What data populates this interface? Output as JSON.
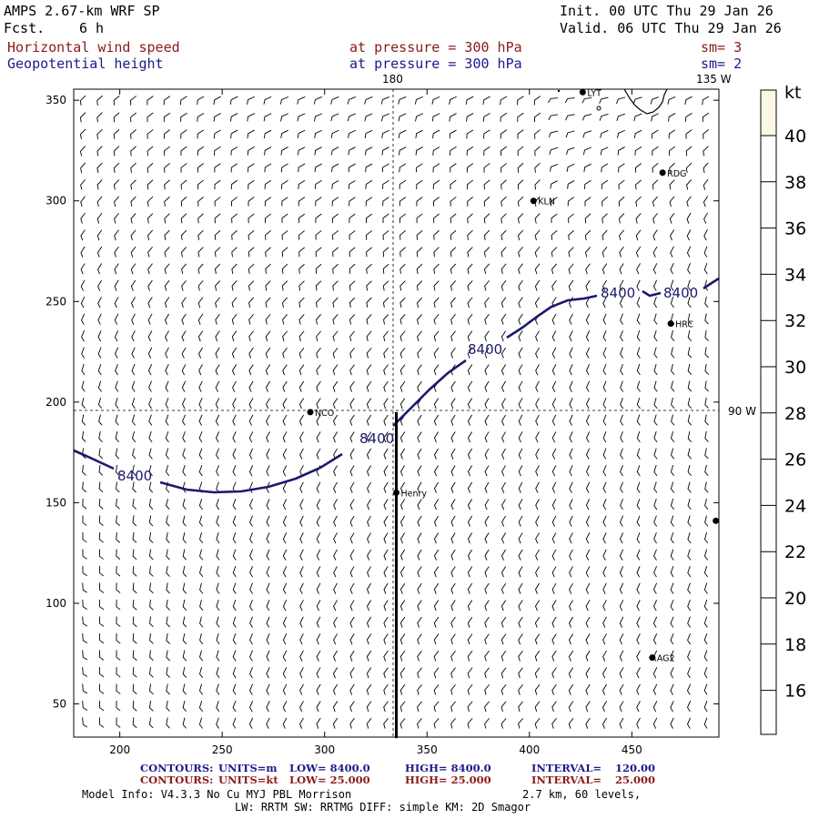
{
  "header": {
    "model": "AMPS 2.67-km WRF SP",
    "fcst_label": "Fcst.",
    "fcst_value": "6 h",
    "init": "Init. 00 UTC Thu 29 Jan 26",
    "valid": "Valid. 06 UTC Thu 29 Jan 26",
    "field1_name": "Horizontal wind speed",
    "field1_level": "at pressure =  300 hPa",
    "field1_sm": "sm= 3",
    "field2_name": "Geopotential height",
    "field2_level": "at pressure =  300 hPa",
    "field2_sm": "sm= 2"
  },
  "map": {
    "meridian_labels": {
      "m180": "180",
      "m135w": "135 W",
      "m90w": "90 W"
    },
    "x_ticks": [
      "200",
      "250",
      "300",
      "350",
      "400",
      "450"
    ],
    "y_ticks": [
      "350",
      "300",
      "250",
      "200",
      "150",
      "100",
      "50"
    ],
    "stations": [
      {
        "id": "LYT",
        "x": 426,
        "y": 354
      },
      {
        "id": "RDG",
        "x": 465,
        "y": 314
      },
      {
        "id": "KLN",
        "x": 402,
        "y": 300
      },
      {
        "id": "HRC",
        "x": 469,
        "y": 239
      },
      {
        "id": "NCO",
        "x": 293,
        "y": 195
      },
      {
        "id": "Henry",
        "x": 335,
        "y": 155
      },
      {
        "id": "AG2",
        "x": 460,
        "y": 73
      },
      {
        "id": "",
        "x": 491,
        "y": 141
      }
    ],
    "cross_section_x": 335,
    "cross_section_y": [
      33,
      195
    ],
    "contour_label": "8400"
  },
  "colorbar": {
    "unit": "kt",
    "ticks": [
      "40",
      "38",
      "36",
      "34",
      "32",
      "30",
      "28",
      "26",
      "24",
      "22",
      "20",
      "18",
      "16"
    ]
  },
  "footer": {
    "contours1_label": "CONTOURS:",
    "contours1_units": "UNITS=m",
    "contours1_low": "LOW=  8400.0",
    "contours1_high": "HIGH=  8400.0",
    "contours1_interval": "INTERVAL=",
    "contours1_interval_value": "120.00",
    "contours2_label": "CONTOURS:",
    "contours2_units": "UNITS=kt",
    "contours2_low": "LOW=  25.000",
    "contours2_high": "HIGH=  25.000",
    "contours2_interval": "INTERVAL=",
    "contours2_interval_value": "25.000",
    "model_info": "Model Info: V4.3.3    No Cu   MYJ PBL  Morrison",
    "resolution": "2.7 km,  60 levels,",
    "physics": "LW: RRTM SW: RRTMG    DIFF: simple KM: 2D Smagor"
  },
  "colors": {
    "contour": "#1a1a6e",
    "header_red": "#8b1a1a",
    "header_blue": "#1a1a8b",
    "footer_blue": "#1a1a8b",
    "footer_red": "#8b1a1a",
    "colorbar_top": "#fbf8e6"
  }
}
